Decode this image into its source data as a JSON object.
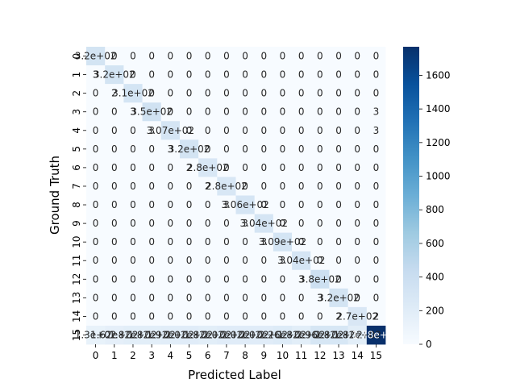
{
  "chart_data": {
    "type": "heatmap",
    "xlabel": "Predicted Label",
    "ylabel": "Ground Truth",
    "x_ticks": [
      "0",
      "1",
      "2",
      "3",
      "4",
      "5",
      "6",
      "7",
      "8",
      "9",
      "10",
      "11",
      "12",
      "13",
      "14",
      "15"
    ],
    "y_ticks": [
      "0",
      "1",
      "2",
      "3",
      "4",
      "5",
      "6",
      "7",
      "8",
      "9",
      "10",
      "11",
      "12",
      "13",
      "14",
      "15"
    ],
    "colorbar": {
      "min": 0,
      "max": 1770,
      "ticks": [
        "0",
        "200",
        "400",
        "600",
        "800",
        "1000",
        "1200",
        "1400",
        "1600"
      ],
      "colormap": "Blues"
    },
    "matrix": [
      [
        320,
        0,
        0,
        0,
        0,
        0,
        0,
        0,
        0,
        0,
        0,
        0,
        0,
        0,
        0,
        0
      ],
      [
        3,
        320,
        0,
        0,
        0,
        0,
        0,
        0,
        0,
        0,
        0,
        0,
        0,
        0,
        0,
        0
      ],
      [
        0,
        2,
        310,
        0,
        0,
        0,
        0,
        0,
        0,
        0,
        0,
        0,
        0,
        0,
        0,
        0
      ],
      [
        0,
        0,
        3,
        350,
        0,
        0,
        0,
        0,
        0,
        0,
        0,
        0,
        0,
        0,
        0,
        3
      ],
      [
        0,
        0,
        0,
        3,
        307,
        0,
        0,
        0,
        0,
        0,
        0,
        0,
        0,
        0,
        0,
        3
      ],
      [
        0,
        0,
        0,
        0,
        3,
        320,
        0,
        0,
        0,
        0,
        0,
        0,
        0,
        0,
        0,
        0
      ],
      [
        0,
        0,
        0,
        0,
        0,
        2,
        280,
        0,
        0,
        0,
        0,
        0,
        0,
        0,
        0,
        0
      ],
      [
        0,
        0,
        0,
        0,
        0,
        0,
        2,
        280,
        0,
        0,
        0,
        0,
        0,
        0,
        0,
        0
      ],
      [
        0,
        0,
        0,
        0,
        0,
        0,
        0,
        3,
        306,
        0,
        0,
        0,
        0,
        0,
        0,
        0
      ],
      [
        0,
        0,
        0,
        0,
        0,
        0,
        0,
        0,
        3,
        304,
        0,
        0,
        0,
        0,
        0,
        0
      ],
      [
        0,
        0,
        0,
        0,
        0,
        0,
        0,
        0,
        0,
        3,
        309,
        0,
        0,
        0,
        0,
        0
      ],
      [
        0,
        0,
        0,
        0,
        0,
        0,
        0,
        0,
        0,
        0,
        3,
        304,
        0,
        0,
        0,
        0
      ],
      [
        0,
        0,
        0,
        0,
        0,
        0,
        0,
        0,
        0,
        0,
        0,
        3,
        380,
        0,
        0,
        0
      ],
      [
        0,
        0,
        0,
        0,
        0,
        0,
        0,
        0,
        0,
        0,
        0,
        0,
        3,
        320,
        0,
        0
      ],
      [
        0,
        0,
        0,
        0,
        0,
        0,
        0,
        0,
        0,
        0,
        0,
        0,
        0,
        2,
        270,
        2
      ],
      [
        130,
        162,
        182,
        182,
        192,
        202,
        182,
        202,
        202,
        202,
        226,
        182,
        296,
        282,
        182,
        1780
      ]
    ],
    "cell_labels": [
      [
        "3.2e+02",
        "0",
        "0",
        "0",
        "0",
        "0",
        "0",
        "0",
        "0",
        "0",
        "0",
        "0",
        "0",
        "0",
        "0",
        "0"
      ],
      [
        "3",
        "3.2e+02",
        "0",
        "0",
        "0",
        "0",
        "0",
        "0",
        "0",
        "0",
        "0",
        "0",
        "0",
        "0",
        "0",
        "0"
      ],
      [
        "0",
        "2",
        "3.1e+02",
        "0",
        "0",
        "0",
        "0",
        "0",
        "0",
        "0",
        "0",
        "0",
        "0",
        "0",
        "0",
        "0"
      ],
      [
        "0",
        "0",
        "3",
        "3.5e+02",
        "0",
        "0",
        "0",
        "0",
        "0",
        "0",
        "0",
        "0",
        "0",
        "0",
        "0",
        "3"
      ],
      [
        "0",
        "0",
        "0",
        "3",
        "3.07e+02",
        "0",
        "0",
        "0",
        "0",
        "0",
        "0",
        "0",
        "0",
        "0",
        "0",
        "3"
      ],
      [
        "0",
        "0",
        "0",
        "0",
        "3",
        "3.2e+02",
        "0",
        "0",
        "0",
        "0",
        "0",
        "0",
        "0",
        "0",
        "0",
        "0"
      ],
      [
        "0",
        "0",
        "0",
        "0",
        "0",
        "2",
        "2.8e+02",
        "0",
        "0",
        "0",
        "0",
        "0",
        "0",
        "0",
        "0",
        "0"
      ],
      [
        "0",
        "0",
        "0",
        "0",
        "0",
        "0",
        "2",
        "2.8e+02",
        "0",
        "0",
        "0",
        "0",
        "0",
        "0",
        "0",
        "0"
      ],
      [
        "0",
        "0",
        "0",
        "0",
        "0",
        "0",
        "0",
        "3",
        "3.06e+02",
        "0",
        "0",
        "0",
        "0",
        "0",
        "0",
        "0"
      ],
      [
        "0",
        "0",
        "0",
        "0",
        "0",
        "0",
        "0",
        "0",
        "3",
        "3.04e+02",
        "0",
        "0",
        "0",
        "0",
        "0",
        "0"
      ],
      [
        "0",
        "0",
        "0",
        "0",
        "0",
        "0",
        "0",
        "0",
        "0",
        "3",
        "3.09e+02",
        "0",
        "0",
        "0",
        "0",
        "0"
      ],
      [
        "0",
        "0",
        "0",
        "0",
        "0",
        "0",
        "0",
        "0",
        "0",
        "0",
        "3",
        "3.04e+02",
        "0",
        "0",
        "0",
        "0"
      ],
      [
        "0",
        "0",
        "0",
        "0",
        "0",
        "0",
        "0",
        "0",
        "0",
        "0",
        "0",
        "3",
        "3.8e+02",
        "0",
        "0",
        "0"
      ],
      [
        "0",
        "0",
        "0",
        "0",
        "0",
        "0",
        "0",
        "0",
        "0",
        "0",
        "0",
        "0",
        "3",
        "3.2e+02",
        "0",
        "0"
      ],
      [
        "0",
        "0",
        "0",
        "0",
        "0",
        "0",
        "0",
        "0",
        "0",
        "0",
        "0",
        "0",
        "0",
        "2",
        "2.7e+02",
        "2"
      ],
      [
        "1.3e+02",
        "1.62e+02",
        "1.82e+02",
        "1.82e+02",
        "1.92e+02",
        "2.02e+02",
        "1.82e+02",
        "2.02e+02",
        "2.02e+02",
        "2.02e+02",
        "2.26e+02",
        "1.82e+02",
        "2.96e+02",
        "2.82e+02",
        "1.82e+02",
        "1.78e+03"
      ]
    ]
  }
}
